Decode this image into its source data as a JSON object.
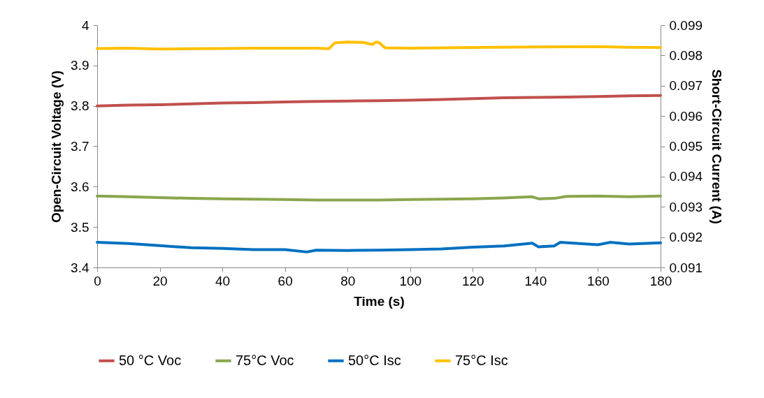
{
  "chart_data": {
    "type": "line",
    "xlabel": "Time (s)",
    "ylabel": "Open-Circuit Voltage (V)",
    "y2label": "Short-Circuit Current (A)",
    "xlim": [
      0,
      180
    ],
    "xticks": [
      0,
      20,
      40,
      60,
      80,
      100,
      120,
      140,
      160,
      180
    ],
    "ylim": [
      3.4,
      4
    ],
    "yticks": [
      3.4,
      3.5,
      3.6,
      3.7,
      3.8,
      3.9,
      4
    ],
    "y2lim": [
      0.091,
      0.099
    ],
    "y2ticks": [
      0.091,
      0.092,
      0.093,
      0.094,
      0.095,
      0.096,
      0.097,
      0.098,
      0.099
    ],
    "grid": false,
    "legend": "bottom",
    "marker": "none",
    "line_style": "solid",
    "series": [
      {
        "name": "50 °C Voc",
        "color": "#c0504d",
        "x": [
          0,
          10,
          20,
          30,
          40,
          50,
          60,
          70,
          80,
          90,
          100,
          110,
          120,
          130,
          140,
          150,
          160,
          170,
          180
        ],
        "values": [
          3.8,
          3.802,
          3.803,
          3.805,
          3.807,
          3.808,
          3.81,
          3.811,
          3.812,
          3.813,
          3.814,
          3.816,
          3.818,
          3.82,
          3.821,
          3.822,
          3.823,
          3.825,
          3.826
        ]
      },
      {
        "name": "75°C Voc",
        "color": "#8aa64d",
        "x": [
          0,
          10,
          20,
          30,
          40,
          50,
          60,
          70,
          80,
          90,
          100,
          110,
          120,
          130,
          139,
          141,
          146,
          150,
          160,
          170,
          180
        ],
        "values": [
          3.577,
          3.575,
          3.573,
          3.571,
          3.57,
          3.569,
          3.568,
          3.567,
          3.567,
          3.567,
          3.568,
          3.569,
          3.57,
          3.572,
          3.575,
          3.57,
          3.571,
          3.576,
          3.577,
          3.575,
          3.577
        ]
      },
      {
        "name": "50°C Isc",
        "color": "#0070c0",
        "axis": "y2",
        "x": [
          0,
          10,
          20,
          30,
          40,
          50,
          60,
          67,
          70,
          80,
          90,
          100,
          110,
          120,
          130,
          139,
          141,
          146,
          148,
          160,
          164,
          170,
          180
        ],
        "values": [
          0.09183,
          0.09179,
          0.09172,
          0.09165,
          0.09163,
          0.09159,
          0.09159,
          0.09151,
          0.09157,
          0.09156,
          0.09157,
          0.09159,
          0.09161,
          0.09167,
          0.09171,
          0.0918,
          0.09168,
          0.09171,
          0.09183,
          0.09175,
          0.09183,
          0.09177,
          0.09181
        ]
      },
      {
        "name": "75°C Isc",
        "color": "#ffc000",
        "axis": "y2",
        "x": [
          0,
          10,
          20,
          30,
          40,
          50,
          60,
          70,
          74,
          76,
          80,
          85,
          88,
          89,
          90,
          92,
          100,
          120,
          140,
          160,
          170,
          180
        ],
        "values": [
          0.09823,
          0.09824,
          0.09821,
          0.09822,
          0.09823,
          0.09824,
          0.09824,
          0.09824,
          0.09822,
          0.09842,
          0.09844,
          0.09843,
          0.09836,
          0.09844,
          0.09843,
          0.09825,
          0.09824,
          0.09826,
          0.09828,
          0.09829,
          0.09827,
          0.09826
        ]
      }
    ]
  }
}
